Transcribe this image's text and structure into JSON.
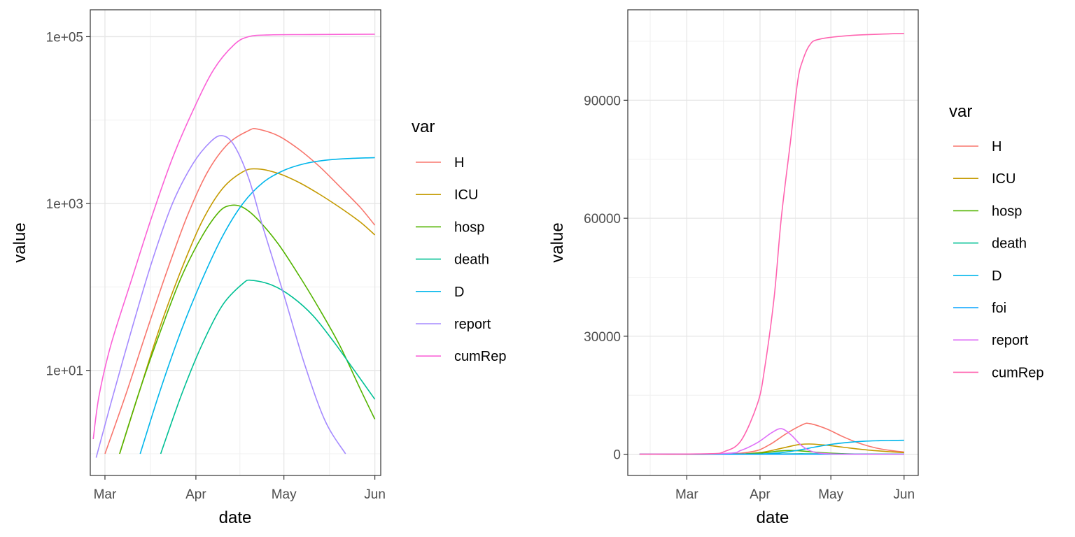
{
  "chart_data": [
    {
      "type": "line",
      "panel": "left",
      "xlabel": "date",
      "ylabel": "value",
      "y_scale": "log10",
      "ylim": [
        0.55,
        210000
      ],
      "xlim": [
        "2020-02-25",
        "2020-06-03"
      ],
      "x_ticks": [
        {
          "date": "2020-03-01",
          "label": "Mar"
        },
        {
          "date": "2020-04-01",
          "label": "Apr"
        },
        {
          "date": "2020-05-01",
          "label": "May"
        },
        {
          "date": "2020-06-01",
          "label": "Jun"
        }
      ],
      "y_ticks": [
        {
          "value": 10,
          "label": "1e+01"
        },
        {
          "value": 1000,
          "label": "1e+03"
        },
        {
          "value": 100000,
          "label": "1e+05"
        }
      ],
      "grid": true,
      "legend": {
        "title": "var",
        "placement": "right"
      },
      "series": [
        {
          "name": "H",
          "color": "#F8766D",
          "points": [
            [
              "2020-03-01",
              1
            ],
            [
              "2020-03-08",
              5
            ],
            [
              "2020-03-15",
              28
            ],
            [
              "2020-03-22",
              150
            ],
            [
              "2020-03-29",
              700
            ],
            [
              "2020-04-05",
              2400
            ],
            [
              "2020-04-12",
              5200
            ],
            [
              "2020-04-19",
              7500
            ],
            [
              "2020-04-22",
              7800
            ],
            [
              "2020-04-29",
              6500
            ],
            [
              "2020-05-06",
              4500
            ],
            [
              "2020-05-13",
              2800
            ],
            [
              "2020-05-20",
              1600
            ],
            [
              "2020-05-27",
              900
            ],
            [
              "2020-06-01",
              550
            ]
          ]
        },
        {
          "name": "ICU",
          "color": "#C49A00",
          "points": [
            [
              "2020-03-06",
              1
            ],
            [
              "2020-03-13",
              6
            ],
            [
              "2020-03-20",
              35
            ],
            [
              "2020-03-27",
              160
            ],
            [
              "2020-04-03",
              600
            ],
            [
              "2020-04-10",
              1500
            ],
            [
              "2020-04-17",
              2400
            ],
            [
              "2020-04-22",
              2600
            ],
            [
              "2020-04-29",
              2300
            ],
            [
              "2020-05-06",
              1800
            ],
            [
              "2020-05-13",
              1300
            ],
            [
              "2020-05-20",
              900
            ],
            [
              "2020-05-27",
              600
            ],
            [
              "2020-06-01",
              420
            ]
          ]
        },
        {
          "name": "hosp",
          "color": "#53B400",
          "points": [
            [
              "2020-03-06",
              1
            ],
            [
              "2020-03-13",
              6
            ],
            [
              "2020-03-20",
              30
            ],
            [
              "2020-03-27",
              130
            ],
            [
              "2020-04-03",
              400
            ],
            [
              "2020-04-09",
              800
            ],
            [
              "2020-04-13",
              950
            ],
            [
              "2020-04-17",
              900
            ],
            [
              "2020-04-22",
              650
            ],
            [
              "2020-04-29",
              330
            ],
            [
              "2020-05-06",
              140
            ],
            [
              "2020-05-13",
              55
            ],
            [
              "2020-05-20",
              20
            ],
            [
              "2020-05-27",
              6
            ],
            [
              "2020-06-01",
              2.6
            ]
          ]
        },
        {
          "name": "death",
          "color": "#00C094",
          "points": [
            [
              "2020-03-20",
              1
            ],
            [
              "2020-03-27",
              5
            ],
            [
              "2020-04-03",
              20
            ],
            [
              "2020-04-10",
              60
            ],
            [
              "2020-04-17",
              110
            ],
            [
              "2020-04-20",
              120
            ],
            [
              "2020-04-27",
              105
            ],
            [
              "2020-05-04",
              75
            ],
            [
              "2020-05-11",
              45
            ],
            [
              "2020-05-18",
              22
            ],
            [
              "2020-05-25",
              10
            ],
            [
              "2020-06-01",
              4.5
            ]
          ]
        },
        {
          "name": "D",
          "color": "#00B6EB",
          "points": [
            [
              "2020-03-13",
              1
            ],
            [
              "2020-03-20",
              6
            ],
            [
              "2020-03-27",
              30
            ],
            [
              "2020-04-03",
              120
            ],
            [
              "2020-04-10",
              400
            ],
            [
              "2020-04-17",
              1000
            ],
            [
              "2020-04-24",
              1800
            ],
            [
              "2020-05-01",
              2500
            ],
            [
              "2020-05-08",
              3000
            ],
            [
              "2020-05-15",
              3300
            ],
            [
              "2020-05-22",
              3450
            ],
            [
              "2020-06-01",
              3550
            ]
          ]
        },
        {
          "name": "report",
          "color": "#A58AFF",
          "points": [
            [
              "2020-02-27",
              0.9
            ],
            [
              "2020-03-03",
              4
            ],
            [
              "2020-03-10",
              30
            ],
            [
              "2020-03-17",
              200
            ],
            [
              "2020-03-24",
              1000
            ],
            [
              "2020-03-31",
              3000
            ],
            [
              "2020-04-06",
              5500
            ],
            [
              "2020-04-10",
              6500
            ],
            [
              "2020-04-14",
              5000
            ],
            [
              "2020-04-19",
              2000
            ],
            [
              "2020-04-24",
              500
            ],
            [
              "2020-05-01",
              80
            ],
            [
              "2020-05-08",
              12
            ],
            [
              "2020-05-15",
              2.5
            ],
            [
              "2020-05-22",
              1
            ]
          ]
        },
        {
          "name": "cumRep",
          "color": "#FB61D7",
          "points": [
            [
              "2020-02-26",
              1.5
            ],
            [
              "2020-02-28",
              5
            ],
            [
              "2020-03-03",
              20
            ],
            [
              "2020-03-10",
              120
            ],
            [
              "2020-03-17",
              700
            ],
            [
              "2020-03-24",
              3500
            ],
            [
              "2020-03-31",
              13000
            ],
            [
              "2020-04-07",
              40000
            ],
            [
              "2020-04-14",
              80000
            ],
            [
              "2020-04-19",
              100000
            ],
            [
              "2020-04-26",
              105000
            ],
            [
              "2020-05-10",
              106000
            ],
            [
              "2020-06-01",
              107000
            ]
          ]
        }
      ]
    },
    {
      "type": "line",
      "panel": "right",
      "xlabel": "date",
      "ylabel": "value",
      "y_scale": "linear",
      "ylim": [
        -5400,
        113000
      ],
      "xlim": [
        "2020-02-05",
        "2020-06-07"
      ],
      "x_ticks": [
        {
          "date": "2020-03-01",
          "label": "Mar"
        },
        {
          "date": "2020-04-01",
          "label": "Apr"
        },
        {
          "date": "2020-05-01",
          "label": "May"
        },
        {
          "date": "2020-06-01",
          "label": "Jun"
        }
      ],
      "y_ticks": [
        {
          "value": 0,
          "label": "0"
        },
        {
          "value": 30000,
          "label": "30000"
        },
        {
          "value": 60000,
          "label": "60000"
        },
        {
          "value": 90000,
          "label": "90000"
        }
      ],
      "grid": true,
      "legend": {
        "title": "var",
        "placement": "right"
      },
      "series": [
        {
          "name": "H",
          "color": "#F8766D",
          "points": [
            [
              "2020-02-10",
              0
            ],
            [
              "2020-03-15",
              30
            ],
            [
              "2020-03-29",
              700
            ],
            [
              "2020-04-05",
              2400
            ],
            [
              "2020-04-12",
              5200
            ],
            [
              "2020-04-19",
              7500
            ],
            [
              "2020-04-22",
              7800
            ],
            [
              "2020-04-29",
              6500
            ],
            [
              "2020-05-06",
              4500
            ],
            [
              "2020-05-13",
              2800
            ],
            [
              "2020-05-20",
              1600
            ],
            [
              "2020-05-27",
              900
            ],
            [
              "2020-06-01",
              550
            ]
          ]
        },
        {
          "name": "ICU",
          "color": "#C49A00",
          "points": [
            [
              "2020-02-10",
              0
            ],
            [
              "2020-03-20",
              35
            ],
            [
              "2020-03-27",
              160
            ],
            [
              "2020-04-03",
              600
            ],
            [
              "2020-04-10",
              1500
            ],
            [
              "2020-04-17",
              2400
            ],
            [
              "2020-04-22",
              2600
            ],
            [
              "2020-04-29",
              2300
            ],
            [
              "2020-05-06",
              1800
            ],
            [
              "2020-05-13",
              1300
            ],
            [
              "2020-05-20",
              900
            ],
            [
              "2020-05-27",
              600
            ],
            [
              "2020-06-01",
              420
            ]
          ]
        },
        {
          "name": "hosp",
          "color": "#53B400",
          "points": [
            [
              "2020-02-10",
              0
            ],
            [
              "2020-03-20",
              30
            ],
            [
              "2020-03-27",
              130
            ],
            [
              "2020-04-03",
              400
            ],
            [
              "2020-04-09",
              800
            ],
            [
              "2020-04-13",
              950
            ],
            [
              "2020-04-17",
              900
            ],
            [
              "2020-04-22",
              650
            ],
            [
              "2020-04-29",
              330
            ],
            [
              "2020-05-06",
              140
            ],
            [
              "2020-05-13",
              55
            ],
            [
              "2020-06-01",
              3
            ]
          ]
        },
        {
          "name": "death",
          "color": "#00C094",
          "points": [
            [
              "2020-02-10",
              0
            ],
            [
              "2020-03-27",
              5
            ],
            [
              "2020-04-03",
              20
            ],
            [
              "2020-04-10",
              60
            ],
            [
              "2020-04-17",
              110
            ],
            [
              "2020-04-20",
              120
            ],
            [
              "2020-04-27",
              105
            ],
            [
              "2020-05-04",
              75
            ],
            [
              "2020-05-11",
              45
            ],
            [
              "2020-05-18",
              22
            ],
            [
              "2020-06-01",
              5
            ]
          ]
        },
        {
          "name": "D",
          "color": "#00B6EB",
          "points": [
            [
              "2020-02-10",
              0
            ],
            [
              "2020-03-27",
              30
            ],
            [
              "2020-04-03",
              120
            ],
            [
              "2020-04-10",
              400
            ],
            [
              "2020-04-17",
              1000
            ],
            [
              "2020-04-24",
              1800
            ],
            [
              "2020-05-01",
              2500
            ],
            [
              "2020-05-08",
              3000
            ],
            [
              "2020-05-15",
              3300
            ],
            [
              "2020-05-22",
              3450
            ],
            [
              "2020-06-01",
              3550
            ]
          ]
        },
        {
          "name": "foi",
          "color": "#06A4FF",
          "points": [
            [
              "2020-02-10",
              0
            ],
            [
              "2020-06-01",
              0
            ]
          ]
        },
        {
          "name": "report",
          "color": "#DF70F8",
          "points": [
            [
              "2020-02-10",
              0
            ],
            [
              "2020-03-17",
              200
            ],
            [
              "2020-03-24",
              1000
            ],
            [
              "2020-03-31",
              3000
            ],
            [
              "2020-04-06",
              5500
            ],
            [
              "2020-04-10",
              6500
            ],
            [
              "2020-04-14",
              5000
            ],
            [
              "2020-04-19",
              2000
            ],
            [
              "2020-04-24",
              500
            ],
            [
              "2020-05-01",
              80
            ],
            [
              "2020-05-08",
              0
            ],
            [
              "2020-06-01",
              0
            ]
          ]
        },
        {
          "name": "cumRep",
          "color": "#FF64B0",
          "points": [
            [
              "2020-02-10",
              0
            ],
            [
              "2020-03-10",
              120
            ],
            [
              "2020-03-17",
              700
            ],
            [
              "2020-03-24",
              3500
            ],
            [
              "2020-03-31",
              13000
            ],
            [
              "2020-04-03",
              22000
            ],
            [
              "2020-04-07",
              40000
            ],
            [
              "2020-04-10",
              60000
            ],
            [
              "2020-04-14",
              80000
            ],
            [
              "2020-04-17",
              95000
            ],
            [
              "2020-04-19",
              100000
            ],
            [
              "2020-04-22",
              104000
            ],
            [
              "2020-04-26",
              105500
            ],
            [
              "2020-05-10",
              106500
            ],
            [
              "2020-06-01",
              107000
            ]
          ]
        }
      ]
    }
  ]
}
